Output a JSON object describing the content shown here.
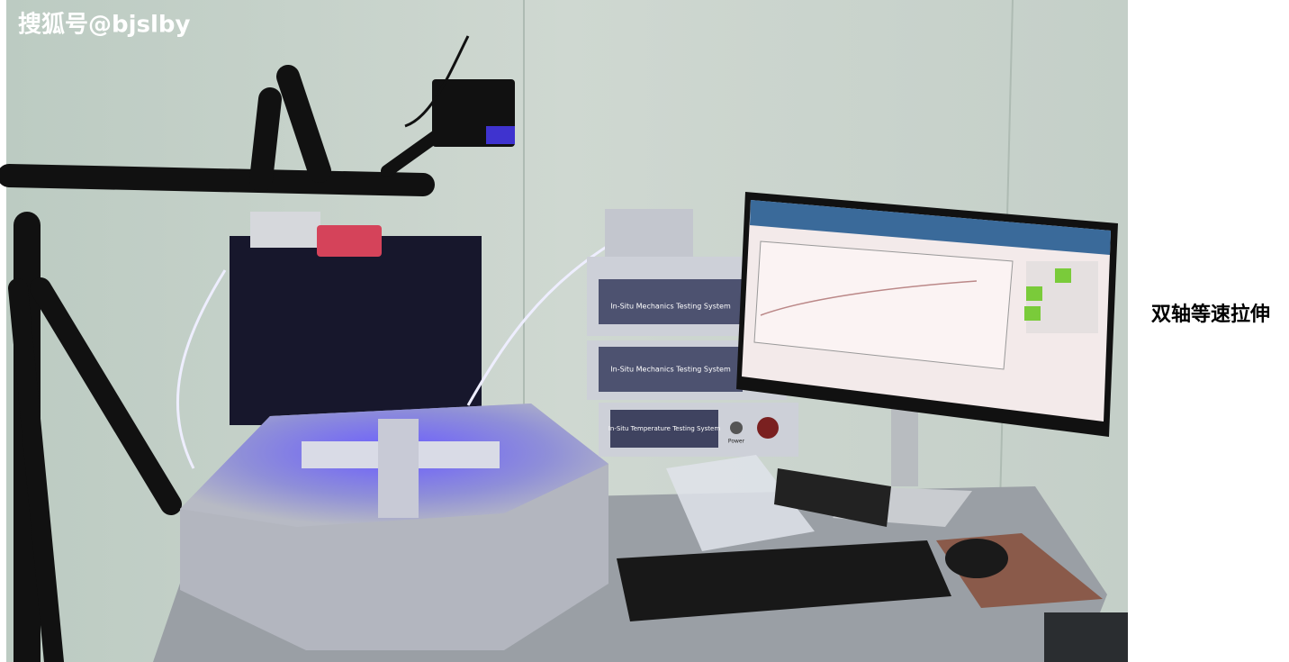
{
  "photo": {
    "watermark": "搜狐号@bjslby",
    "device_labels": [
      "In-Situ Mechanics Testing System",
      "In-Situ Mechanics Testing System",
      "In-Situ Temperature Testing System",
      "Power"
    ]
  },
  "caption": "双轴等速拉伸"
}
